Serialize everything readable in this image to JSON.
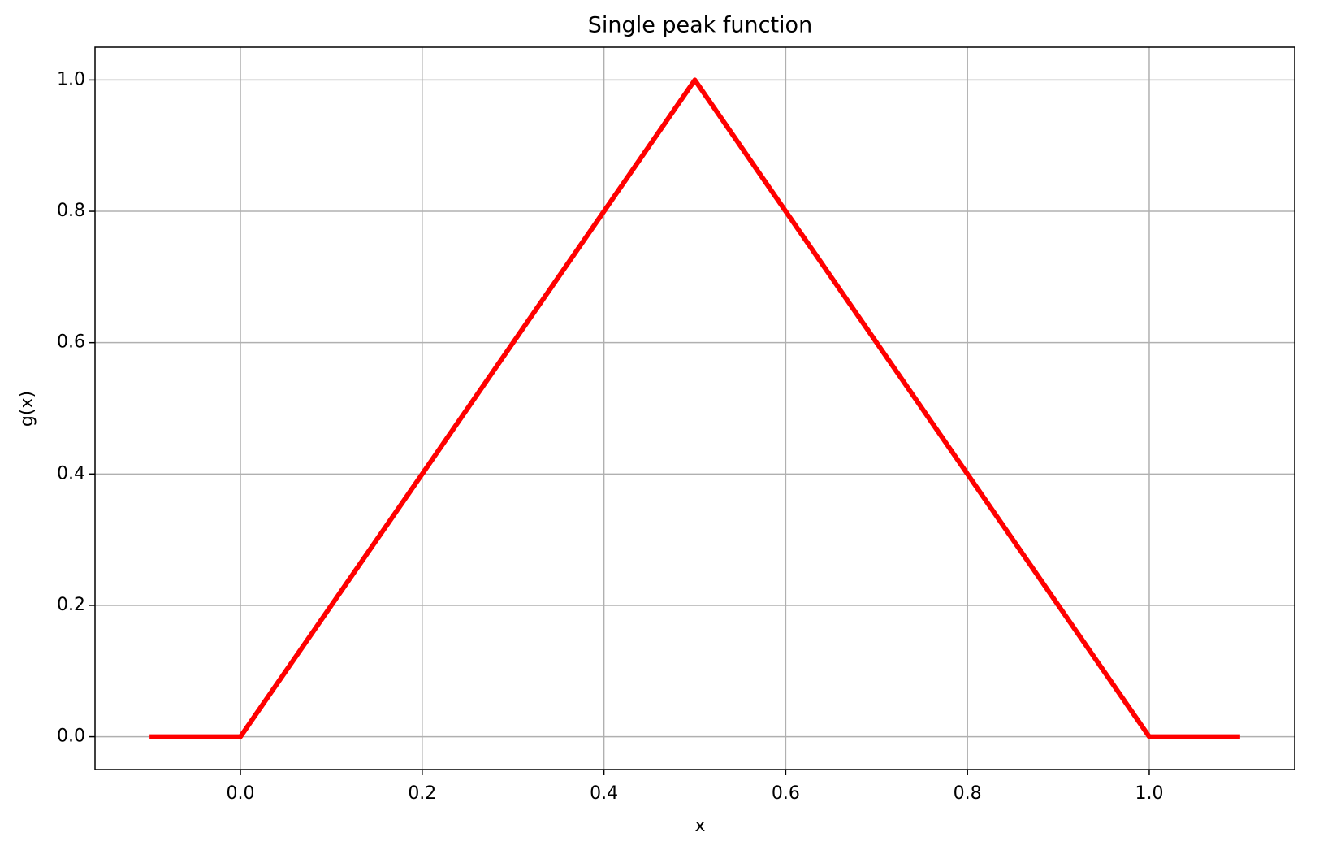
{
  "chart_data": {
    "type": "line",
    "title": "Single peak function",
    "xlabel": "x",
    "ylabel": "g(x)",
    "x": [
      -0.1,
      0,
      0.5,
      1,
      1.1
    ],
    "values": [
      0,
      0,
      1,
      0,
      0
    ],
    "color": "#ff0000",
    "xlim": [
      -0.16,
      1.16
    ],
    "ylim": [
      -0.05,
      1.05
    ],
    "xticks": [
      {
        "value": 0,
        "label": "0.0"
      },
      0.2,
      0.4,
      0.6,
      0.8,
      {
        "value": 1,
        "label": "1.0"
      }
    ],
    "yticks": [
      {
        "value": 0,
        "label": "0.0"
      },
      0.2,
      0.4,
      0.6,
      0.8,
      {
        "value": 1,
        "label": "1.0"
      }
    ],
    "grid": true
  }
}
